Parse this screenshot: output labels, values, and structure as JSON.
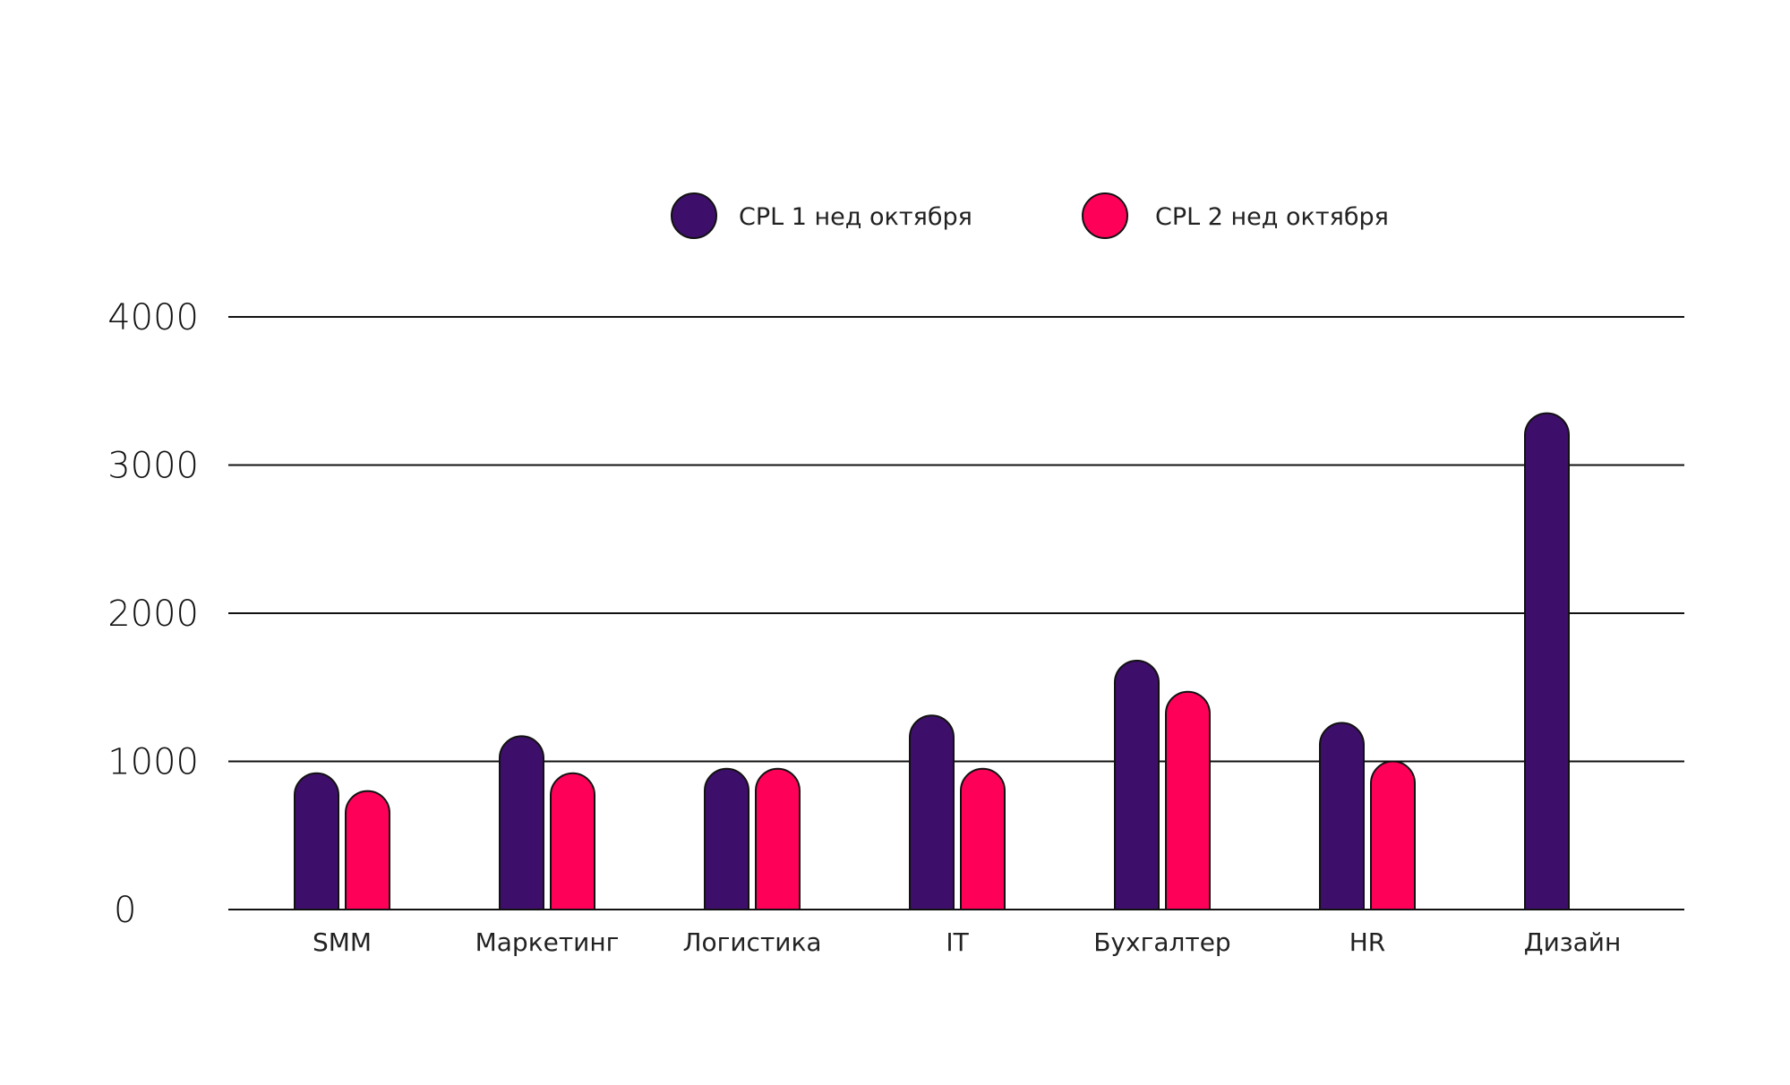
{
  "chart_data": {
    "type": "bar",
    "title": "",
    "xlabel": "",
    "ylabel": "",
    "categories": [
      "SMM",
      "Маркетинг",
      "Логистика",
      "IT",
      "Бухгалтер",
      "HR",
      "Дизайн"
    ],
    "series": [
      {
        "name": "CPL 1 нед октября",
        "color": "#3d0f6b",
        "values": [
          920,
          1170,
          950,
          1310,
          1680,
          1260,
          3350
        ]
      },
      {
        "name": "CPL 2 нед октября",
        "color": "#ff0059",
        "values": [
          800,
          920,
          950,
          950,
          1470,
          1000,
          null
        ]
      }
    ],
    "yticks": [
      "0",
      "1000",
      "2000",
      "3000",
      "4000"
    ],
    "ylim": [
      0,
      4000
    ],
    "grid": true,
    "legend_position": "top-center"
  }
}
